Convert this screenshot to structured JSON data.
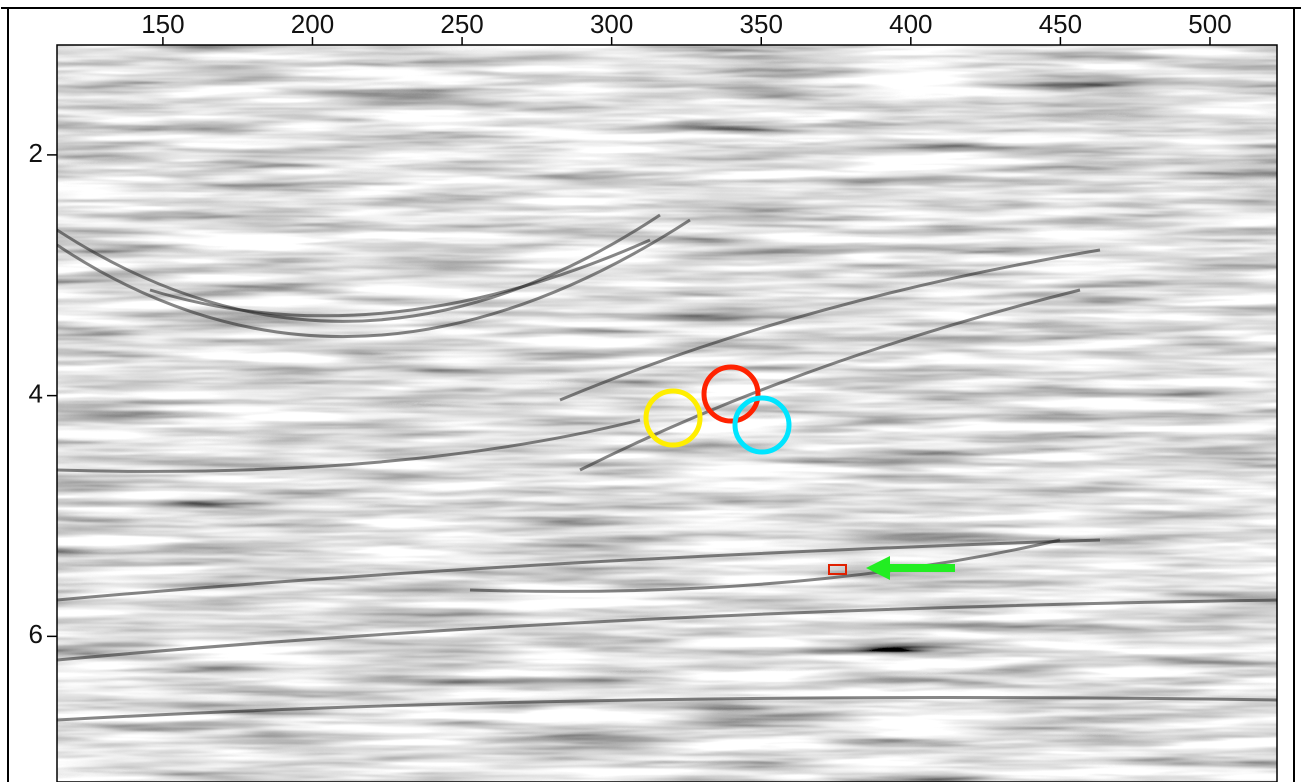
{
  "chart_data": {
    "type": "image",
    "xlim": [
      114.6,
      522.4
    ],
    "xticks": [
      150,
      200,
      250,
      300,
      350,
      400,
      450,
      500
    ],
    "ylim": [
      1.087,
      7.21
    ],
    "yticks": [
      2,
      4,
      6
    ]
  }
}
